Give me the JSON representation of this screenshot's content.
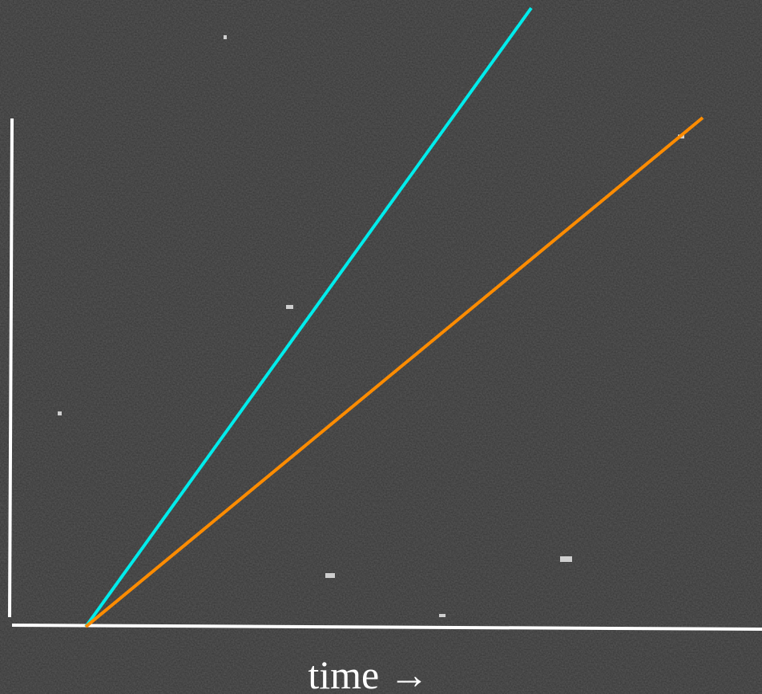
{
  "x_axis_label": "time →"
}
